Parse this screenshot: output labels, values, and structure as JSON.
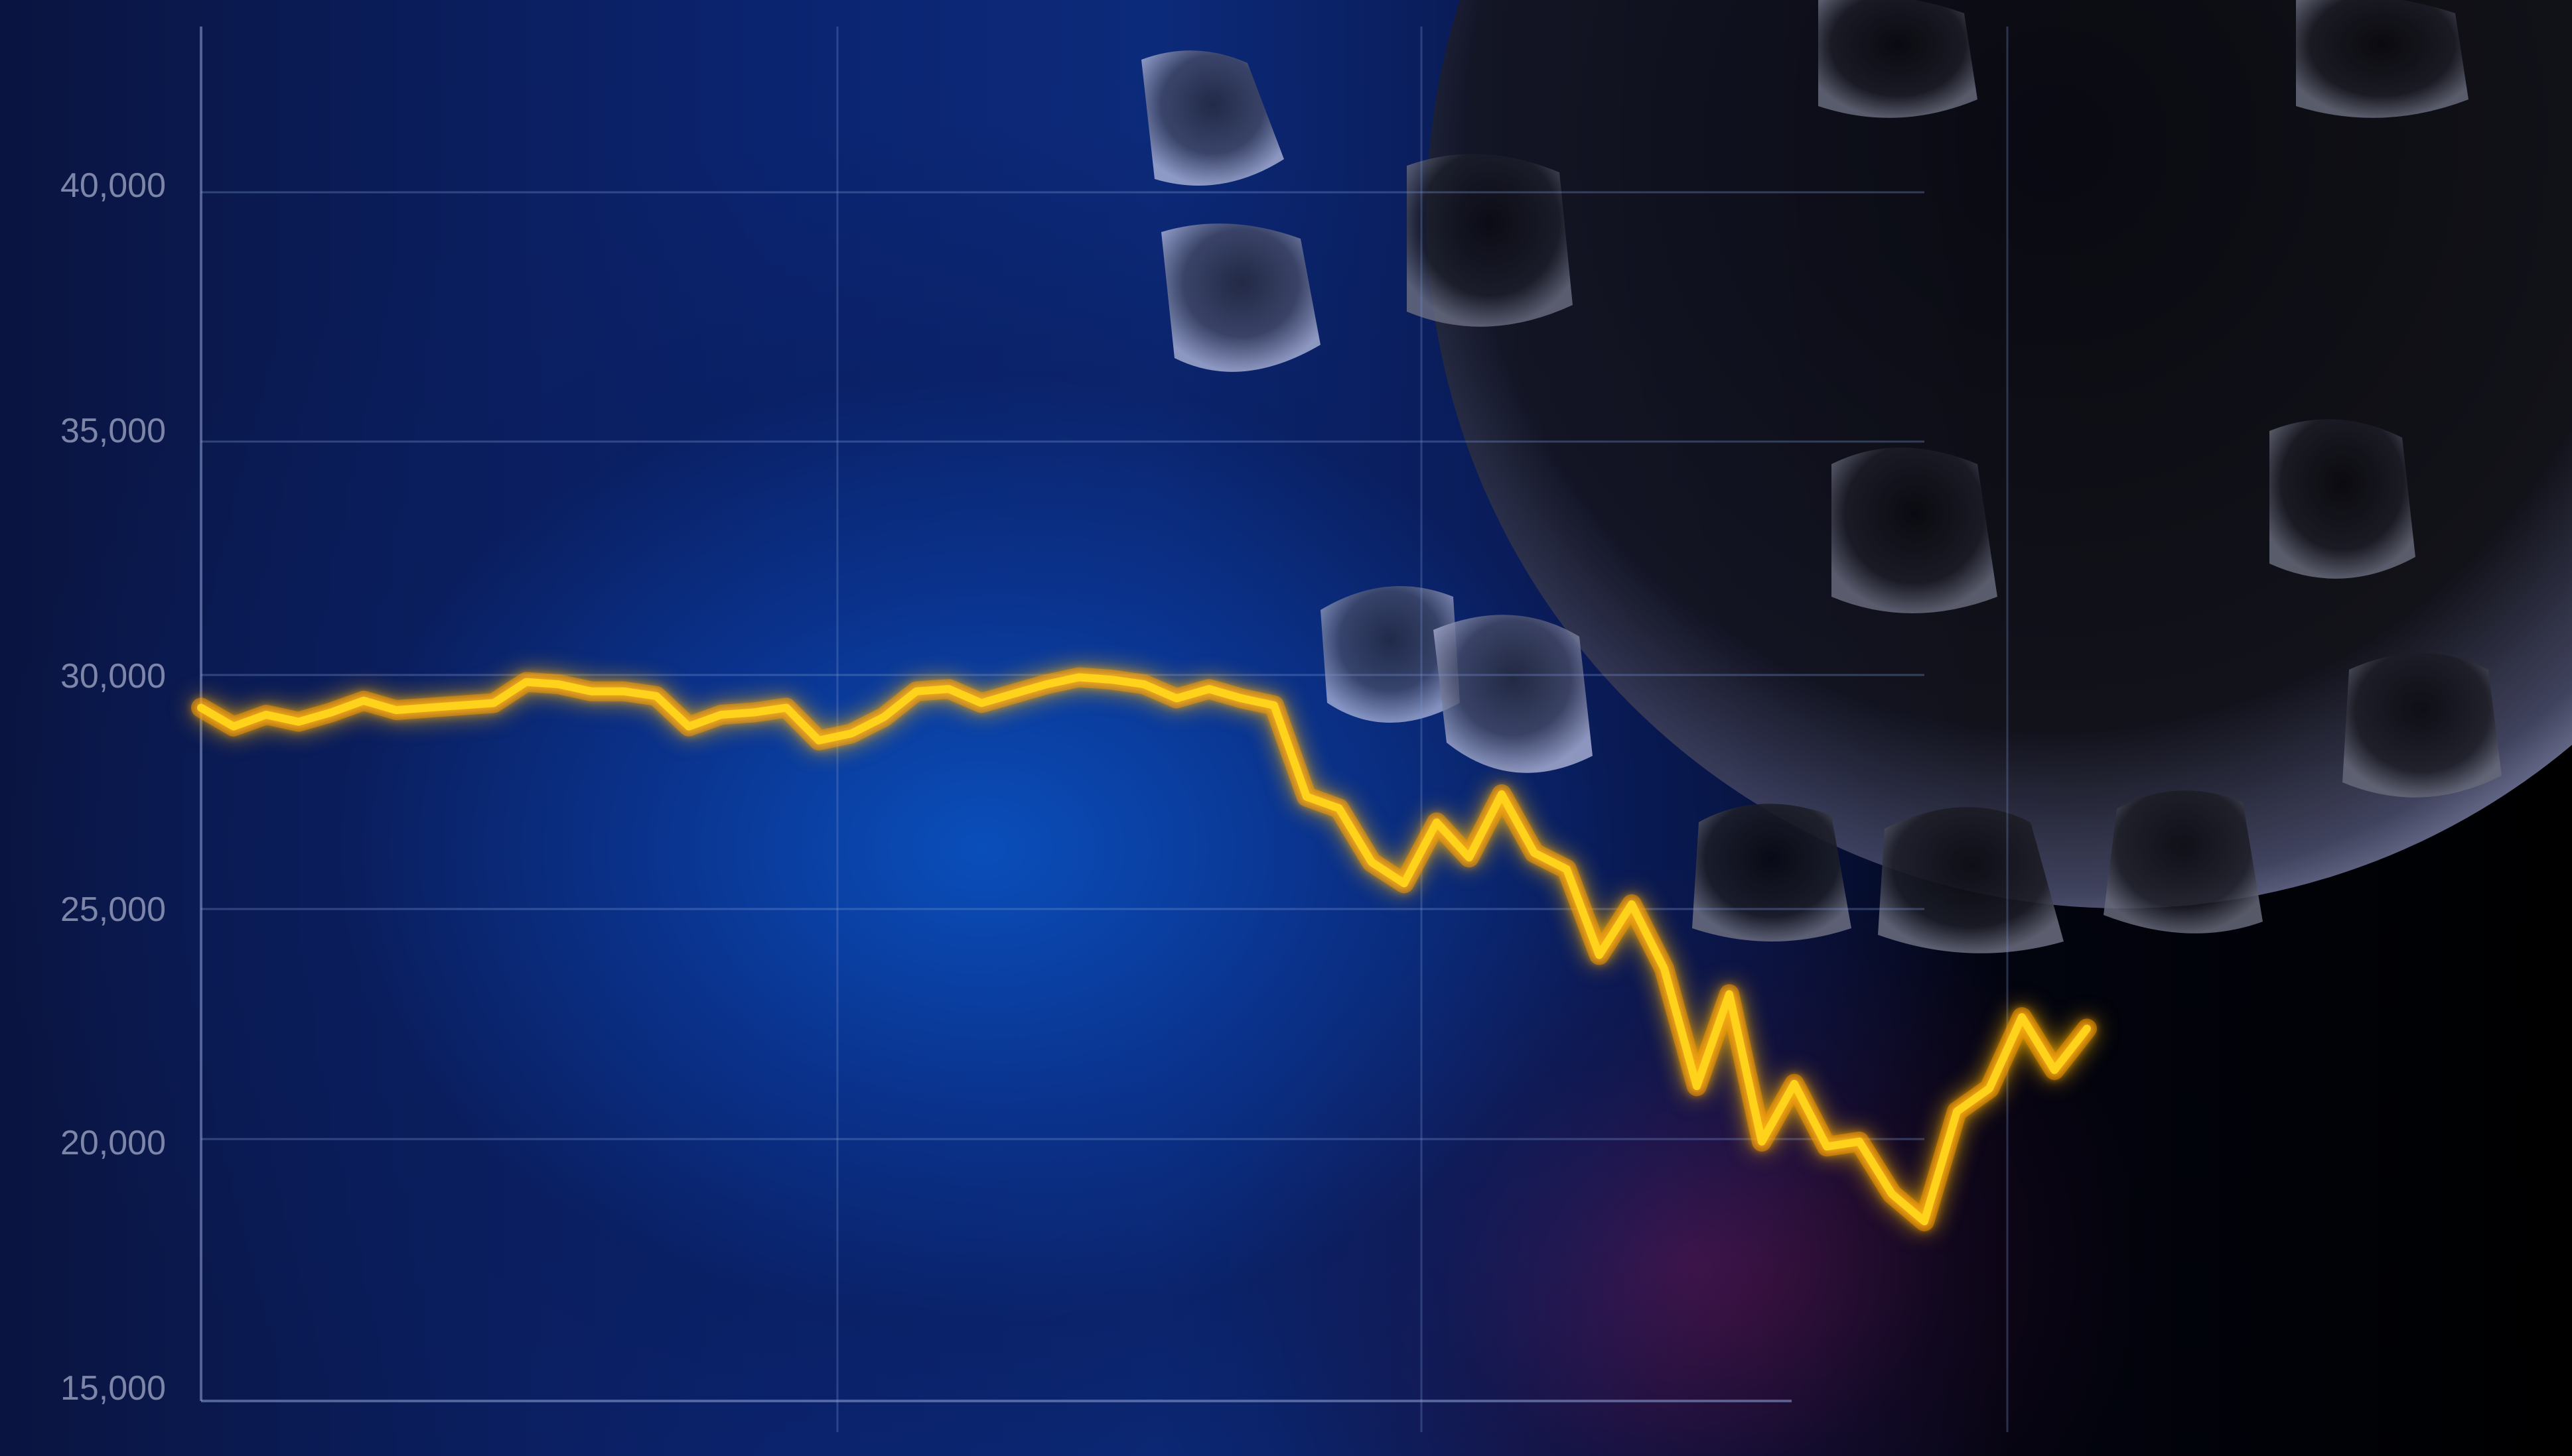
{
  "chart_data": {
    "type": "line",
    "title": "",
    "xlabel": "",
    "ylabel": "",
    "ylim": [
      15000,
      42000
    ],
    "yticks": [
      "40,000",
      "35,000",
      "30,000",
      "25,000",
      "20,000",
      "15,000"
    ],
    "ytick_values": [
      40000,
      35000,
      30000,
      25000,
      20000,
      15000
    ],
    "grid": true,
    "vertical_gridlines": 3,
    "line_color": "#ffd21a",
    "glow_color": "#ff9a00",
    "series": [
      {
        "values": [
          29300,
          28900,
          29150,
          29000,
          29200,
          29450,
          29250,
          29300,
          29350,
          29400,
          29850,
          29800,
          29650,
          29650,
          29550,
          28900,
          29150,
          29200,
          29300,
          28600,
          28750,
          29100,
          29650,
          29700,
          29400,
          29600,
          29800,
          29950,
          29900,
          29800,
          29500,
          29700,
          29500,
          29350,
          27400,
          27150,
          26000,
          25550,
          26850,
          26100,
          27450,
          26200,
          25850,
          24000,
          25100,
          23700,
          21150,
          23150,
          19950,
          21200,
          19850,
          19950,
          18900,
          18350,
          20600,
          21100,
          22650,
          21500,
          22400
        ]
      }
    ]
  },
  "decor": {
    "background_accent": "#0c3fae",
    "subject": "virus-illustration"
  }
}
